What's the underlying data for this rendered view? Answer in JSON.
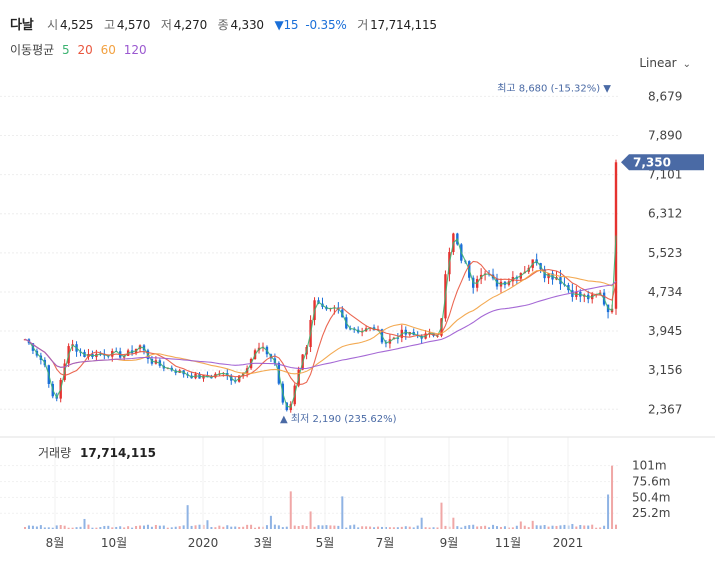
{
  "header": {
    "name": "다날",
    "open_label": "시",
    "open": "4,525",
    "high_label": "고",
    "high": "4,570",
    "low_label": "저",
    "low": "4,270",
    "close_label": "종",
    "close": "4,330",
    "change": "▼15",
    "change_pct": "-0.35%",
    "volume_label": "거",
    "volume": "17,714,115"
  },
  "ma": {
    "label": "이동평균",
    "p5": "5",
    "p20": "20",
    "p60": "60",
    "p120": "120"
  },
  "scale": {
    "label": "Linear"
  },
  "colors": {
    "ma5": "#3cb371",
    "ma20": "#e9573f",
    "ma60": "#f2a140",
    "ma120": "#9b59d0",
    "up": "#e5322f",
    "down": "#1a6fd8",
    "tag": "#4a6aa5"
  },
  "chart_data": [
    {
      "type": "candlestick",
      "x_ticks": [
        "8월",
        "10월",
        "2020",
        "3월",
        "5월",
        "7월",
        "9월",
        "11월",
        "2021"
      ],
      "y_ticks": [
        8679,
        7890,
        7101,
        6312,
        5523,
        4734,
        3945,
        3156,
        2367
      ],
      "y_tick_labels": [
        "8,679",
        "7,890",
        "7,101",
        "6,312",
        "5,523",
        "4,734",
        "3,945",
        "3,156",
        "2,367"
      ],
      "ylim": [
        2050,
        9050
      ],
      "current_price": 7350,
      "current_price_label": "7,350",
      "max_annotation": "최고 8,680 (-15.32%)",
      "min_annotation": "최저 2,190 (235.62%)",
      "ma_periods": [
        5,
        20,
        60,
        120
      ]
    },
    {
      "type": "bar",
      "title": "거래량",
      "title_value": "17,714,115",
      "y_ticks": [
        25.2,
        50.4,
        75.6,
        101
      ],
      "y_tick_labels": [
        "25.2m",
        "50.4m",
        "75.6m",
        "101m"
      ],
      "ylim": [
        0,
        110
      ]
    }
  ]
}
